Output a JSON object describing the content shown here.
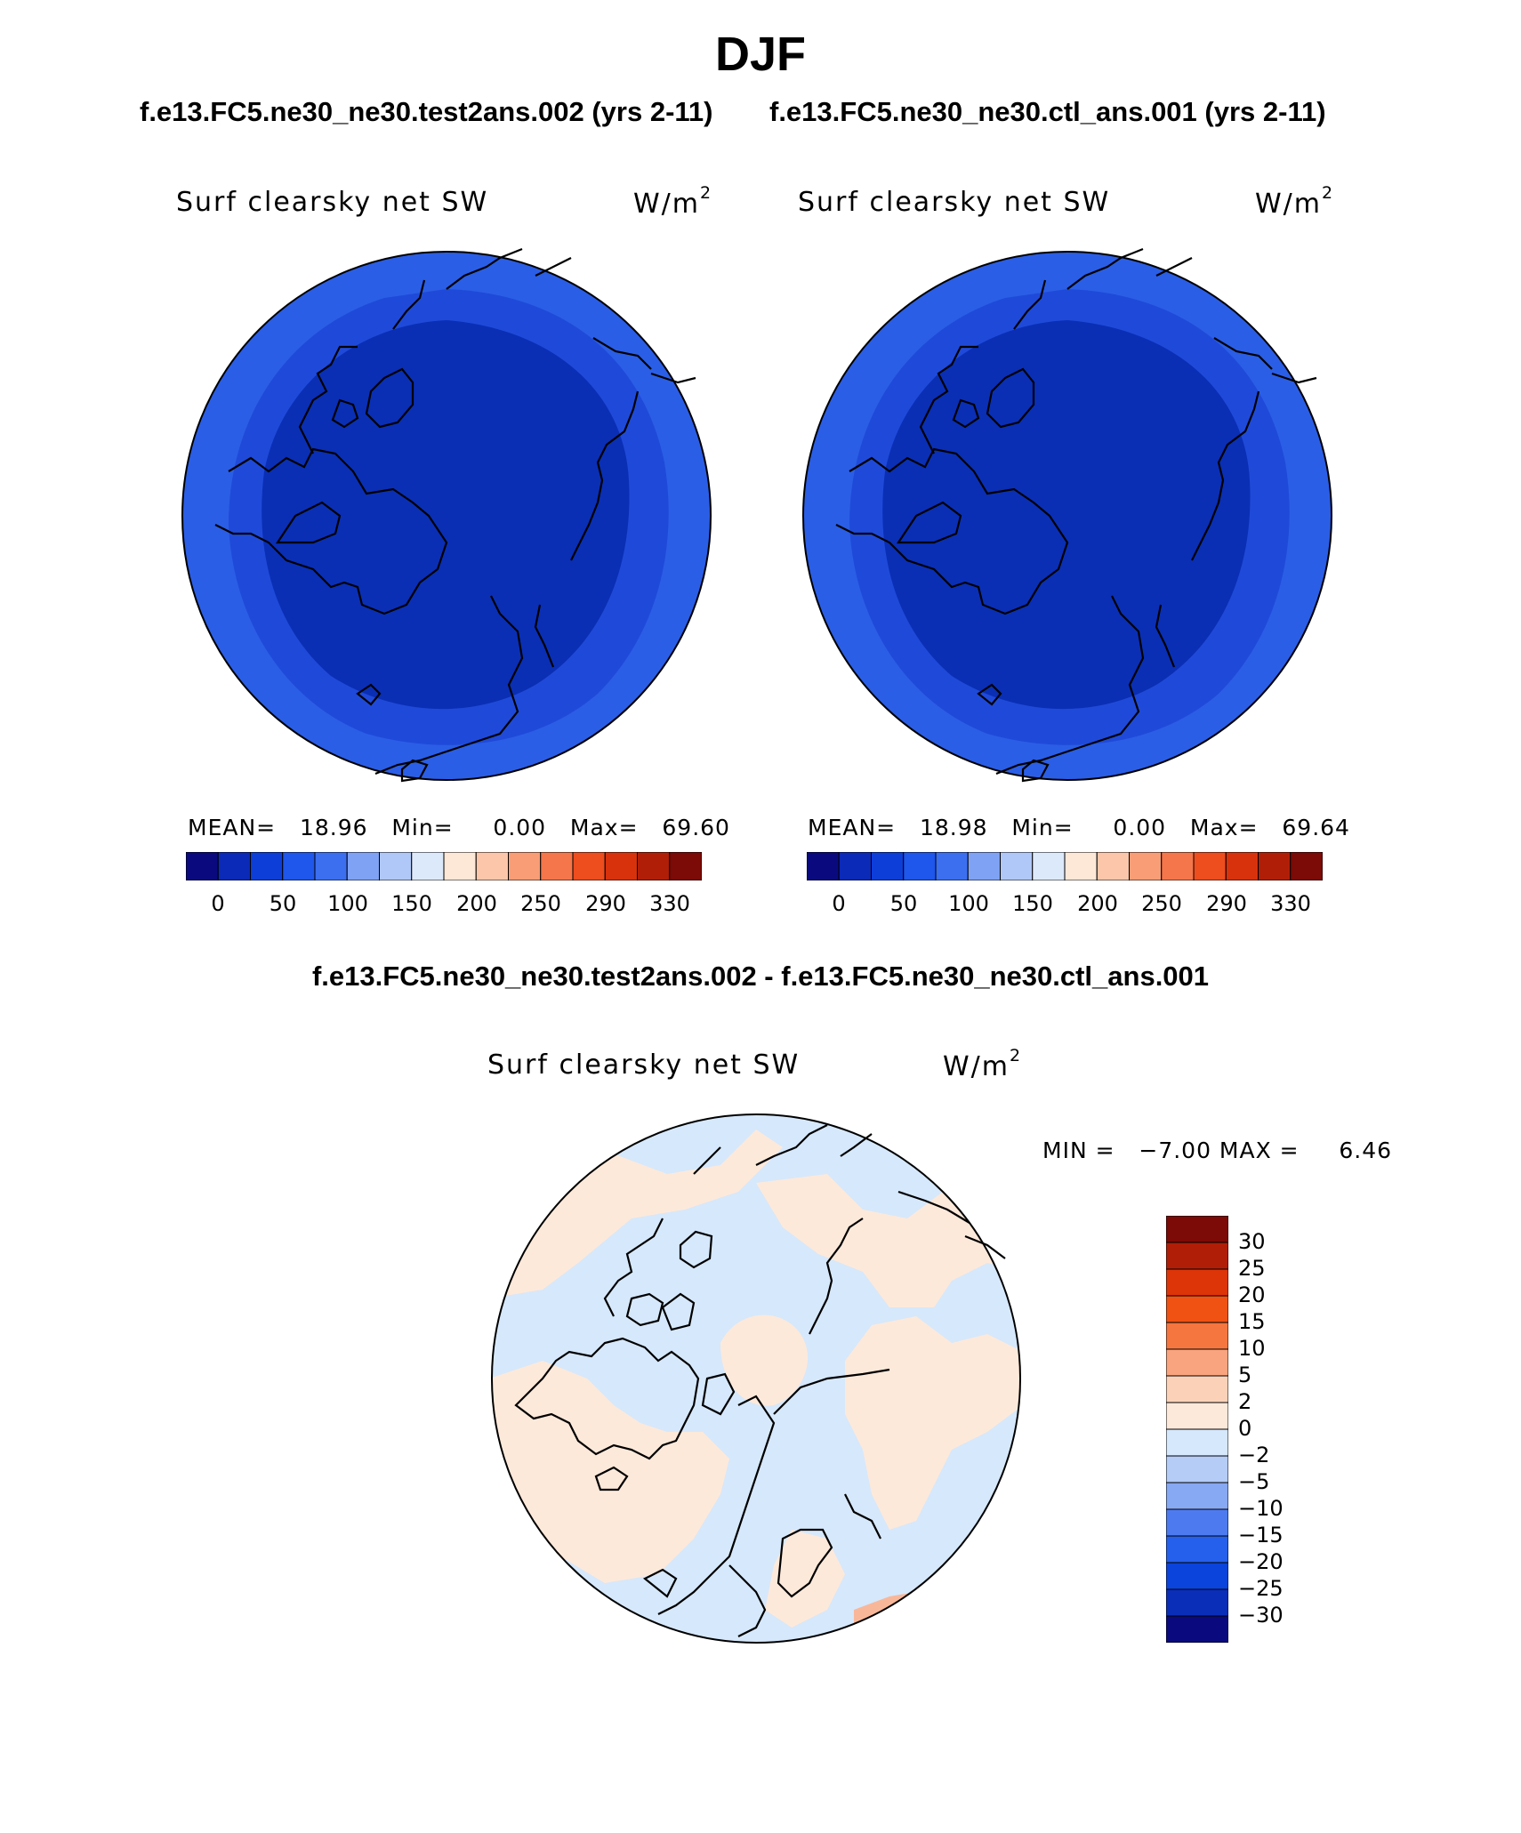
{
  "page": {
    "season": "DJF",
    "case_test": "f.e13.FC5.ne30_ne30.test2ans.002 (yrs 2-11)",
    "case_ctl": "f.e13.FC5.ne30_ne30.ctl_ans.001 (yrs 2-11)",
    "diff_title": "f.e13.FC5.ne30_ne30.test2ans.002 - f.e13.FC5.ne30_ne30.ctl_ans.001"
  },
  "panels": {
    "test": {
      "variable": "Surf clearsky net SW",
      "units": "W/m",
      "units_sup": "2",
      "stats": "MEAN=   18.96   Min=     0.00   Max=   69.60"
    },
    "ctl": {
      "variable": "Surf clearsky net SW",
      "units": "W/m",
      "units_sup": "2",
      "stats": "MEAN=   18.98   Min=     0.00   Max=   69.64"
    },
    "diff": {
      "variable": "Surf clearsky net SW",
      "units": "W/m",
      "units_sup": "2",
      "stats": "MIN =   −7.00 MAX =     6.46"
    }
  },
  "colorbar_main": {
    "colors": [
      "#0a0a7e",
      "#0b2ab8",
      "#0d3ed8",
      "#1f56ec",
      "#3c6ff0",
      "#7fa2f4",
      "#b0c8f7",
      "#dce9fb",
      "#fde7d7",
      "#fbc6aa",
      "#f89d76",
      "#f5764a",
      "#ee4d1e",
      "#d8320c",
      "#b11e08",
      "#7c0a06"
    ],
    "ticks": [
      "0",
      "50",
      "100",
      "150",
      "200",
      "250",
      "290",
      "330"
    ]
  },
  "colorbar_diff": {
    "colors": [
      "#7c0a06",
      "#b11e08",
      "#dd3508",
      "#f05214",
      "#f5763e",
      "#f9a47e",
      "#fbd2b8",
      "#fde9da",
      "#d6e8fb",
      "#b4ccf6",
      "#87a8f2",
      "#4d7bef",
      "#2560ec",
      "#0b44dc",
      "#0a2eb8",
      "#0a0a7e"
    ],
    "ticks": [
      "30",
      "25",
      "20",
      "15",
      "10",
      "5",
      "2",
      "0",
      "−2",
      "−5",
      "−10",
      "−15",
      "−20",
      "−25",
      "−30"
    ]
  },
  "map_colors": {
    "abs_outer": "#2b5ee6",
    "abs_mid": "#1f4ad9",
    "abs_inner": "#0a2fb5",
    "diff_neg": "#d6e8fb",
    "diff_pos": "#fde9da",
    "diff_pos2": "#f9b79a"
  }
}
